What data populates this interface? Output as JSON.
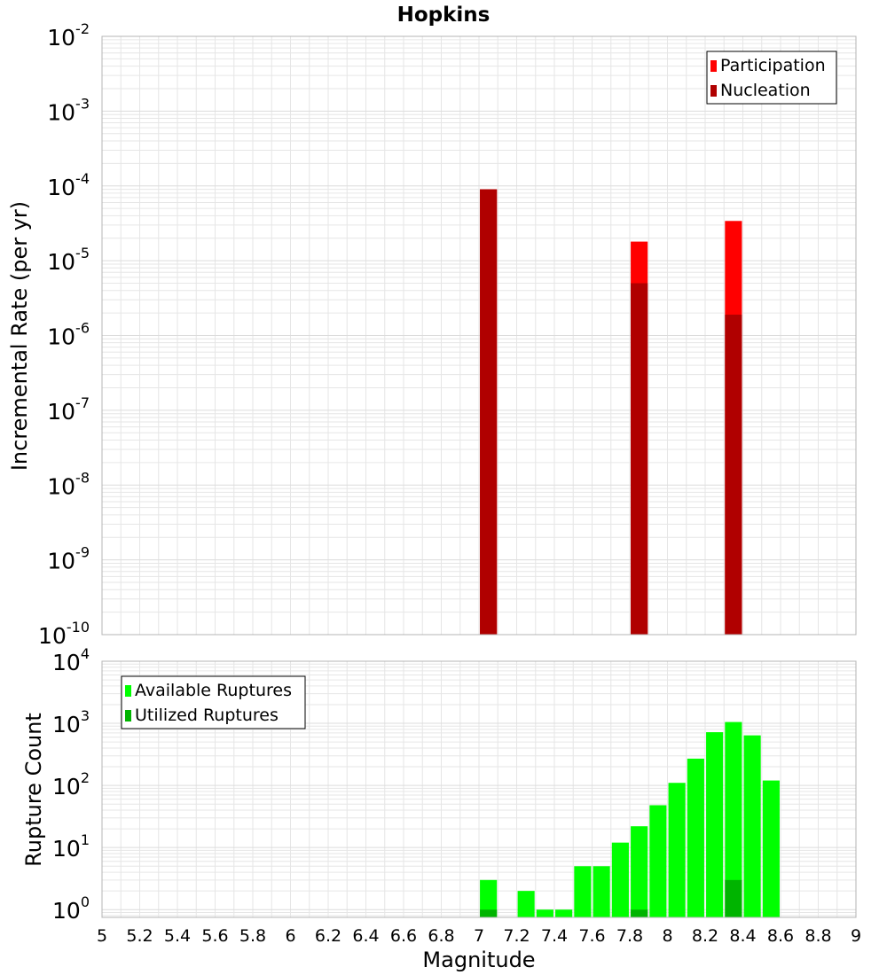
{
  "chart_data": [
    {
      "type": "bar",
      "title": "Hopkins",
      "xlabel": "",
      "ylabel": "Incremental Rate (per yr)",
      "xlim": [
        5,
        9
      ],
      "ylim": [
        1e-10,
        0.01
      ],
      "yscale": "log",
      "grid": true,
      "legend_position": "top-right",
      "y_tick_exponents": [
        -10,
        -9,
        -8,
        -7,
        -6,
        -5,
        -4,
        -3,
        -2
      ],
      "bar_width": 0.09,
      "series": [
        {
          "name": "Participation",
          "color": "#ff0000",
          "x": [
            7.05,
            7.85,
            8.35
          ],
          "values": [
            9e-05,
            1.8e-05,
            3.4e-05
          ]
        },
        {
          "name": "Nucleation",
          "color": "#b00000",
          "x": [
            7.05,
            7.85,
            8.35
          ],
          "values": [
            9e-05,
            5e-06,
            1.9e-06
          ]
        }
      ]
    },
    {
      "type": "bar",
      "title": "",
      "xlabel": "Magnitude",
      "ylabel": "Rupture Count",
      "xlim": [
        5,
        9
      ],
      "ylim": [
        0.75,
        10000
      ],
      "yscale": "log",
      "grid": true,
      "legend_position": "top-left",
      "y_tick_exponents": [
        0,
        1,
        2,
        3,
        4
      ],
      "x_ticks": [
        "5",
        "5.2",
        "5.4",
        "5.6",
        "5.8",
        "6",
        "6.2",
        "6.4",
        "6.6",
        "6.8",
        "7",
        "7.2",
        "7.4",
        "7.6",
        "7.8",
        "8",
        "8.2",
        "8.4",
        "8.6",
        "8.8",
        "9"
      ],
      "bar_width": 0.09,
      "series": [
        {
          "name": "Available Ruptures",
          "color": "#00ff00",
          "x": [
            7.05,
            7.25,
            7.35,
            7.45,
            7.55,
            7.65,
            7.75,
            7.85,
            7.95,
            8.05,
            8.15,
            8.25,
            8.35,
            8.45,
            8.55
          ],
          "values": [
            3,
            2,
            1,
            1,
            5,
            5,
            12,
            22,
            48,
            110,
            270,
            720,
            1050,
            640,
            120
          ]
        },
        {
          "name": "Utilized Ruptures",
          "color": "#00b400",
          "x": [
            7.05,
            7.85,
            8.35
          ],
          "values": [
            1,
            1,
            3
          ]
        }
      ]
    }
  ]
}
